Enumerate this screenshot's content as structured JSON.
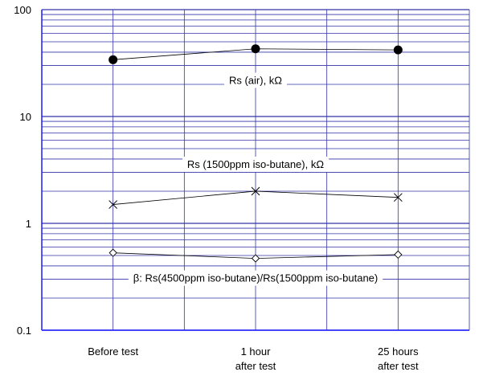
{
  "chart_data": {
    "type": "line",
    "y_scale": "log",
    "ylim": [
      0.1,
      100
    ],
    "y_ticks": [
      "0.1",
      "1",
      "10",
      "100"
    ],
    "categories": [
      [
        "Before test"
      ],
      [
        "1 hour",
        "after test"
      ],
      [
        "25 hours",
        "after test"
      ]
    ],
    "grid": true,
    "colors": {
      "gridline": "#3333aa",
      "axis": "#1a1aff",
      "series": "#000000"
    },
    "series": [
      {
        "values": [
          34,
          43,
          42
        ],
        "marker": "filled-circle"
      },
      {
        "values": [
          1.5,
          2.0,
          1.75
        ],
        "marker": "x"
      },
      {
        "values": [
          0.53,
          0.47,
          0.51
        ],
        "marker": "open-diamond"
      }
    ],
    "annotations": [
      {
        "text": "Rs (air), kΩ",
        "x": 1,
        "y": 22
      },
      {
        "text": "Rs (1500ppm iso-butane), kΩ",
        "x": 1,
        "y": 3.6
      },
      {
        "text": "β: Rs(4500ppm iso-butane)/Rs(1500ppm iso-butane)",
        "x": 1,
        "y": 0.31
      }
    ]
  }
}
